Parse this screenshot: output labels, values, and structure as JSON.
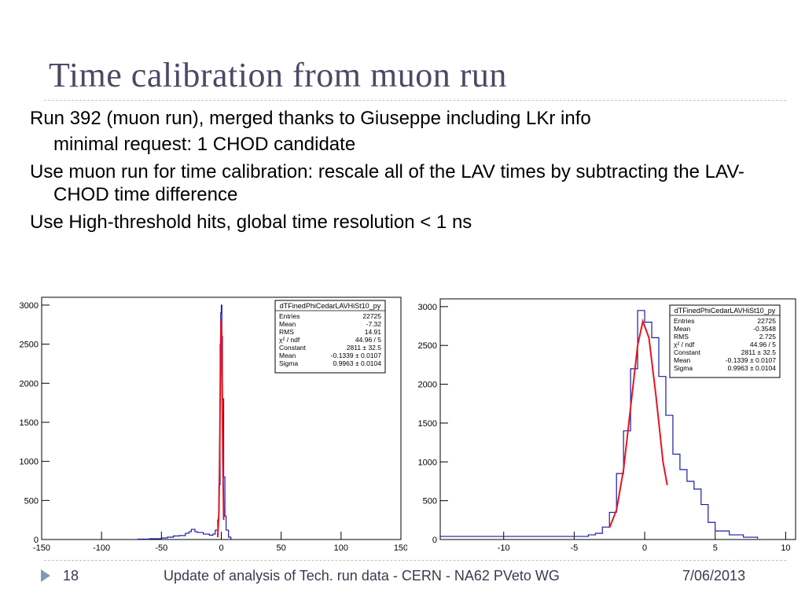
{
  "slide": {
    "title": "Time calibration from muon run",
    "bullets": [
      {
        "text": "Run 392 (muon run), merged thanks to Giuseppe including LKr info",
        "sub": false
      },
      {
        "text": "minimal request: 1 CHOD candidate",
        "sub": true
      },
      {
        "text": "Use muon run for time calibration: rescale all of the LAV times by subtracting the LAV-CHOD time difference",
        "sub": false
      },
      {
        "text": "Use High-threshold hits, global time resolution < 1 ns",
        "sub": false
      }
    ],
    "footer": {
      "page_number": "18",
      "center_text": "Update of analysis of Tech. run data - CERN - NA62 PVeto WG",
      "date": "7/06/2013"
    },
    "colors": {
      "title": "#4a4a66",
      "histogram": "#1a1aa6",
      "fit": "#e8141e",
      "footer_arrow": "#7f9ab0"
    }
  },
  "chart_data": [
    {
      "type": "line",
      "title": "",
      "xlabel": "",
      "ylabel": "",
      "xlim": [
        -150,
        150
      ],
      "ylim": [
        0,
        3100
      ],
      "x_ticks": [
        "-150",
        "-100",
        "-50",
        "0",
        "50",
        "100",
        "150"
      ],
      "y_ticks": [
        "0",
        "500",
        "1000",
        "1500",
        "2000",
        "2500",
        "3000"
      ],
      "grid": false,
      "stats_box": {
        "name": "dTFinedPhiCedarLAVHiSt10_py",
        "rows": [
          [
            "Entries",
            "22725"
          ],
          [
            "Mean",
            "-7.32"
          ],
          [
            "RMS",
            "14.91"
          ],
          [
            "χ² / ndf",
            "44.96 / 5"
          ],
          [
            "Constant",
            "2811 ± 32.5"
          ],
          [
            "Mean",
            "-0.1339 ± 0.0107"
          ],
          [
            "Sigma",
            "0.9963 ± 0.0104"
          ]
        ]
      },
      "series": [
        {
          "x": [
            -70,
            -60,
            -50,
            -45,
            -40,
            -35,
            -30,
            -27,
            -25,
            -22,
            -20,
            -15,
            -10,
            -7,
            -5,
            -3,
            -2,
            -1,
            -0.5,
            0,
            0.5,
            1,
            2,
            3,
            4,
            6,
            8
          ],
          "y": [
            5,
            10,
            20,
            30,
            45,
            50,
            80,
            100,
            130,
            100,
            90,
            70,
            55,
            70,
            120,
            250,
            700,
            2500,
            2900,
            3000,
            2600,
            1800,
            800,
            300,
            120,
            30,
            5
          ]
        },
        {
          "x": [
            -3,
            -2,
            -1.5,
            -1,
            -0.5,
            -0.13,
            0.3,
            0.8,
            1.3,
            2
          ],
          "y": [
            30,
            350,
            900,
            1700,
            2500,
            2811,
            2600,
            1850,
            1000,
            250
          ]
        }
      ]
    },
    {
      "type": "line",
      "title": "",
      "xlabel": "",
      "ylabel": "",
      "xlim": [
        -14.5,
        10.7
      ],
      "ylim": [
        0,
        3100
      ],
      "x_ticks": [
        "-10",
        "-5",
        "0",
        "5",
        "10"
      ],
      "y_ticks": [
        "0",
        "500",
        "1000",
        "1500",
        "2000",
        "2500",
        "3000"
      ],
      "grid": false,
      "stats_box": {
        "name": "dTFinedPhiCedarLAVHiSt10_py",
        "rows": [
          [
            "Entries",
            "22725"
          ],
          [
            "Mean",
            "-0.3548"
          ],
          [
            "RMS",
            "2.725"
          ],
          [
            "χ² / ndf",
            "44.96 / 5"
          ],
          [
            "Constant",
            "2811 ± 32.5"
          ],
          [
            "Mean",
            "-0.1339 ± 0.0107"
          ],
          [
            "Sigma",
            "0.9963 ± 0.0104"
          ]
        ]
      },
      "series": [
        {
          "x": [
            -14.5,
            -4,
            -3.5,
            -3,
            -2.5,
            -2,
            -1.5,
            -1,
            -0.5,
            0,
            0.5,
            1,
            1.5,
            2,
            2.5,
            3,
            3.5,
            4,
            4.5,
            5,
            6,
            7,
            8
          ],
          "y": [
            40,
            60,
            80,
            160,
            350,
            850,
            1400,
            2200,
            2950,
            2800,
            2600,
            2100,
            1600,
            1100,
            900,
            750,
            650,
            450,
            220,
            110,
            60,
            30,
            10
          ]
        },
        {
          "x": [
            -2.5,
            -2,
            -1.5,
            -1,
            -0.5,
            -0.13,
            0.3,
            0.8,
            1.3,
            1.6
          ],
          "y": [
            150,
            380,
            900,
            1700,
            2500,
            2811,
            2600,
            1850,
            1000,
            700
          ]
        }
      ]
    }
  ]
}
